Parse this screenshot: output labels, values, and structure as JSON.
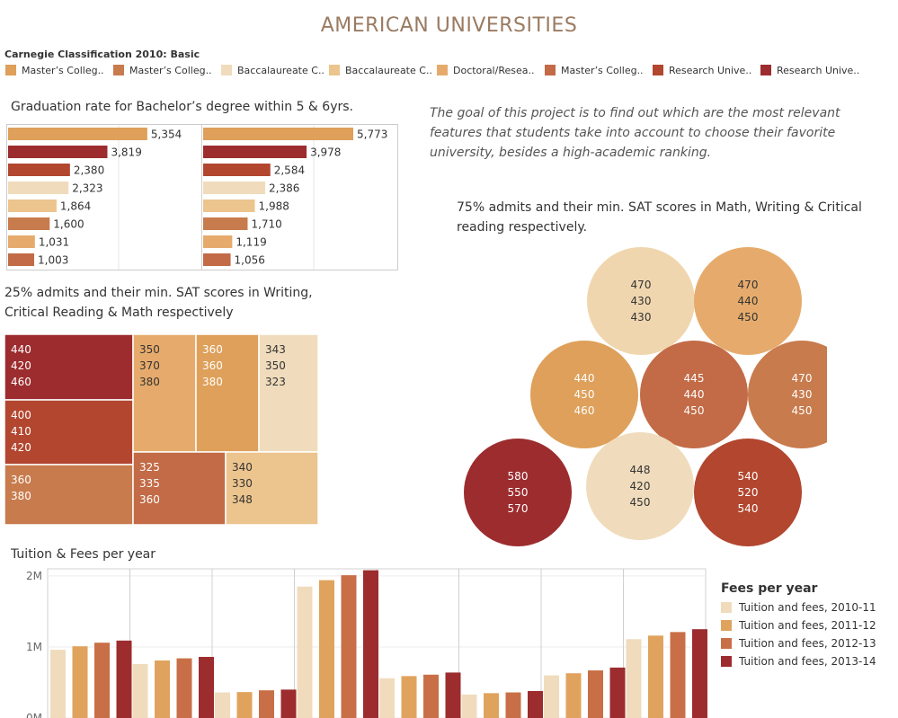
{
  "title": "AMERICAN UNIVERSITIES",
  "legend": {
    "title": "Carnegie Classification 2010: Basic",
    "items": [
      {
        "label": "Master’s Colleg..",
        "color": "#dea05a"
      },
      {
        "label": "Master’s Colleg..",
        "color": "#c87b4d"
      },
      {
        "label": "Baccalaureate C..",
        "color": "#f0dcbc"
      },
      {
        "label": "Baccalaureate C..",
        "color": "#ecc48d"
      },
      {
        "label": "Doctoral/Resea..",
        "color": "#e6ab6c"
      },
      {
        "label": "Master’s Colleg..",
        "color": "#c26b46"
      },
      {
        "label": "Research Unive..",
        "color": "#b2462f"
      },
      {
        "label": "Research Unive..",
        "color": "#9c2c2e"
      }
    ]
  },
  "intro": "The goal of this project is to find out which are the most relevant features that students take into account to choose their favorite university, besides a high-academic ranking.",
  "sections": {
    "graduation": "Graduation rate for Bachelor’s degree within 5 & 6yrs.",
    "sat25": "25% admits and their min. SAT scores in Writing, Critical Reading & Math respectively",
    "sat75": "75% admits and their min. SAT scores in Math, Writing & Critical reading respectively.",
    "tuition": "Tuition & Fees per year"
  },
  "tuition_legend": {
    "title": "Fees per year",
    "items": [
      {
        "label": "Tuition and fees, 2010-11",
        "color": "#f0dcbc"
      },
      {
        "label": "Tuition and fees, 2011-12",
        "color": "#e0a35e"
      },
      {
        "label": "Tuition and fees, 2012-13",
        "color": "#c86f47"
      },
      {
        "label": "Tuition and fees, 2013-14",
        "color": "#9c2c2e"
      }
    ]
  },
  "chart_data": [
    {
      "type": "bar",
      "orientation": "horizontal",
      "panel": "5 years",
      "values": [
        5354,
        3819,
        2380,
        2323,
        1864,
        1600,
        1031,
        1003
      ],
      "labels": [
        "5,354",
        "3,819",
        "2,380",
        "2,323",
        "1,864",
        "1,600",
        "1,031",
        "1,003"
      ],
      "colors": [
        "#dea05a",
        "#9c2c2e",
        "#b2462f",
        "#f0dcbc",
        "#ecc48d",
        "#c87b4d",
        "#e6ab6c",
        "#c26b46"
      ]
    },
    {
      "type": "bar",
      "orientation": "horizontal",
      "panel": "6 years",
      "values": [
        5773,
        3978,
        2584,
        2386,
        1988,
        1710,
        1119,
        1056
      ],
      "labels": [
        "5,773",
        "3,978",
        "2,584",
        "2,386",
        "1,988",
        "1,710",
        "1,119",
        "1,056"
      ],
      "colors": [
        "#dea05a",
        "#9c2c2e",
        "#b2462f",
        "#f0dcbc",
        "#ecc48d",
        "#c87b4d",
        "#e6ab6c",
        "#c26b46"
      ]
    },
    {
      "type": "treemap",
      "tiles": [
        {
          "values": [
            "440",
            "420",
            "460"
          ],
          "color": "#9c2c2e"
        },
        {
          "values": [
            "400",
            "410",
            "420"
          ],
          "color": "#b2462f"
        },
        {
          "values": [
            "360",
            "380"
          ],
          "color": "#c87b4d"
        },
        {
          "values": [
            "350",
            "370",
            "380"
          ],
          "color": "#e6ab6c"
        },
        {
          "values": [
            "360",
            "360",
            "380"
          ],
          "color": "#dea05a"
        },
        {
          "values": [
            "343",
            "350",
            "323"
          ],
          "color": "#f0dcbc"
        },
        {
          "values": [
            "325",
            "335",
            "360"
          ],
          "color": "#c26b46"
        },
        {
          "values": [
            "340",
            "330",
            "348"
          ],
          "color": "#ecc48d"
        }
      ]
    },
    {
      "type": "bubble",
      "bubbles": [
        {
          "values": [
            "470",
            "430",
            "430"
          ],
          "color": "#f0d6ae"
        },
        {
          "values": [
            "470",
            "440",
            "450"
          ],
          "color": "#e6ab6c"
        },
        {
          "values": [
            "440",
            "450",
            "460"
          ],
          "color": "#dea05a"
        },
        {
          "values": [
            "445",
            "440",
            "450"
          ],
          "color": "#c26b46"
        },
        {
          "values": [
            "470",
            "430",
            "450"
          ],
          "color": "#c87b4d"
        },
        {
          "values": [
            "580",
            "550",
            "570"
          ],
          "color": "#9c2c2e"
        },
        {
          "values": [
            "448",
            "420",
            "450"
          ],
          "color": "#f0dcbc"
        },
        {
          "values": [
            "540",
            "520",
            "540"
          ],
          "color": "#b2462f"
        }
      ]
    },
    {
      "type": "bar",
      "title": "Tuition & Fees per year",
      "ylim": [
        0,
        2100000
      ],
      "yticks": [
        {
          "value": 0,
          "label": "0M"
        },
        {
          "value": 1000000,
          "label": "1M"
        },
        {
          "value": 2000000,
          "label": "2M"
        }
      ],
      "series": [
        {
          "name": "Tuition and fees, 2010-11",
          "values": [
            960000,
            760000,
            360000,
            1850000,
            560000,
            330000,
            600000,
            1110000
          ]
        },
        {
          "name": "Tuition and fees, 2011-12",
          "values": [
            1010000,
            810000,
            365000,
            1940000,
            590000,
            350000,
            630000,
            1160000
          ]
        },
        {
          "name": "Tuition and fees, 2012-13",
          "values": [
            1060000,
            840000,
            390000,
            2010000,
            610000,
            360000,
            670000,
            1210000
          ]
        },
        {
          "name": "Tuition and fees, 2013-14",
          "values": [
            1090000,
            860000,
            400000,
            2080000,
            640000,
            380000,
            710000,
            1250000
          ]
        }
      ]
    }
  ]
}
